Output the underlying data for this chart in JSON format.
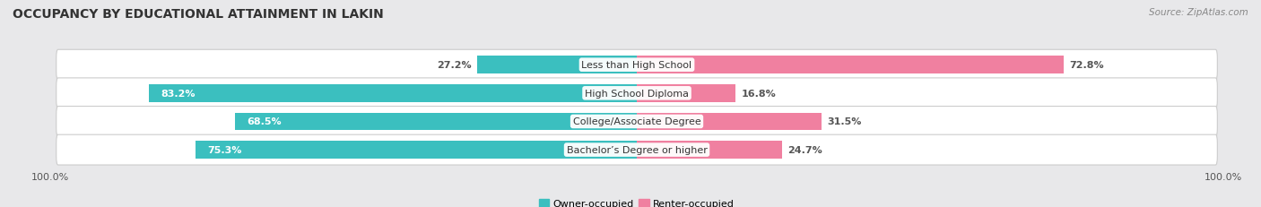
{
  "title": "OCCUPANCY BY EDUCATIONAL ATTAINMENT IN LAKIN",
  "source": "Source: ZipAtlas.com",
  "categories": [
    "Less than High School",
    "High School Diploma",
    "College/Associate Degree",
    "Bachelor’s Degree or higher"
  ],
  "owner_pct": [
    27.2,
    83.2,
    68.5,
    75.3
  ],
  "renter_pct": [
    72.8,
    16.8,
    31.5,
    24.7
  ],
  "owner_color": "#3BBFBF",
  "renter_color": "#F080A0",
  "bg_color": "#E8E8EA",
  "title_fontsize": 10,
  "label_fontsize": 8,
  "tick_fontsize": 8,
  "legend_fontsize": 8,
  "bar_height": 0.62,
  "source_fontsize": 7.5
}
